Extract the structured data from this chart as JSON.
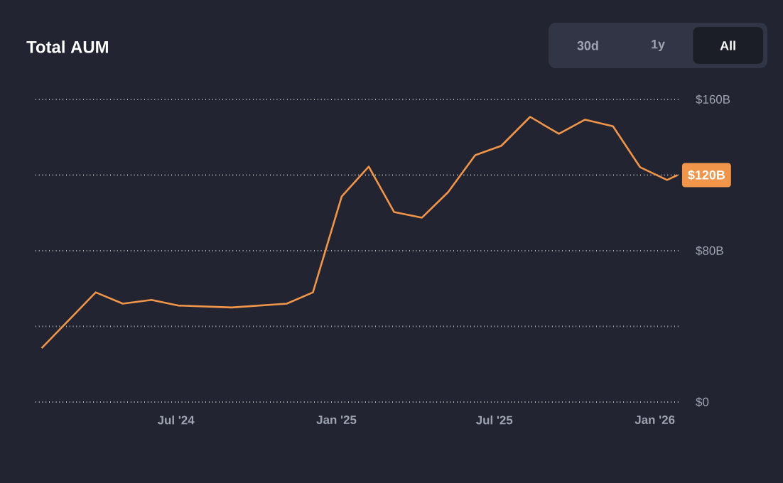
{
  "chart_data": {
    "type": "line",
    "title": "Total AUM",
    "x": [
      "2024-01-29",
      "2024-03-31",
      "2024-05-01",
      "2024-06-03",
      "2024-07-04",
      "2024-09-03",
      "2024-11-05",
      "2024-12-05",
      "2025-01-07",
      "2025-02-07",
      "2025-03-08",
      "2025-04-09",
      "2025-05-09",
      "2025-06-09",
      "2025-07-09",
      "2025-08-11",
      "2025-09-13",
      "2025-10-13",
      "2025-11-14",
      "2025-12-15",
      "2026-01-15",
      "2026-01-27"
    ],
    "series": [
      {
        "color": "#f0954a",
        "values": [
          28.5,
          58,
          52,
          54,
          51,
          50,
          52,
          58,
          108.7,
          124.5,
          100.5,
          97.5,
          111,
          130.5,
          135.5,
          150.8,
          141.8,
          149.3,
          145.8,
          124.2,
          117.4,
          120
        ]
      }
    ],
    "xlim": [
      "2024-01-22",
      "2026-01-29"
    ],
    "xticks": [
      {
        "value": "2024-07-01",
        "label": "Jul '24"
      },
      {
        "value": "2025-01-01",
        "label": "Jan '25"
      },
      {
        "value": "2025-07-01",
        "label": "Jul '25"
      },
      {
        "value": "2026-01-01",
        "label": "Jan '26"
      }
    ],
    "ylim": [
      0,
      160
    ],
    "yticks": [
      {
        "value": 0,
        "label": "$0"
      },
      {
        "value": 40,
        "label": null
      },
      {
        "value": 80,
        "label": "$80B"
      },
      {
        "value": 120,
        "label": null
      },
      {
        "value": 160,
        "label": "$160B"
      }
    ],
    "grid": "y",
    "marker": "none",
    "line_style": "solid",
    "annotations": [
      "30d",
      "1y",
      "All",
      {
        "text": "$120B",
        "x": "2026-01-27",
        "y": 120
      }
    ]
  }
}
